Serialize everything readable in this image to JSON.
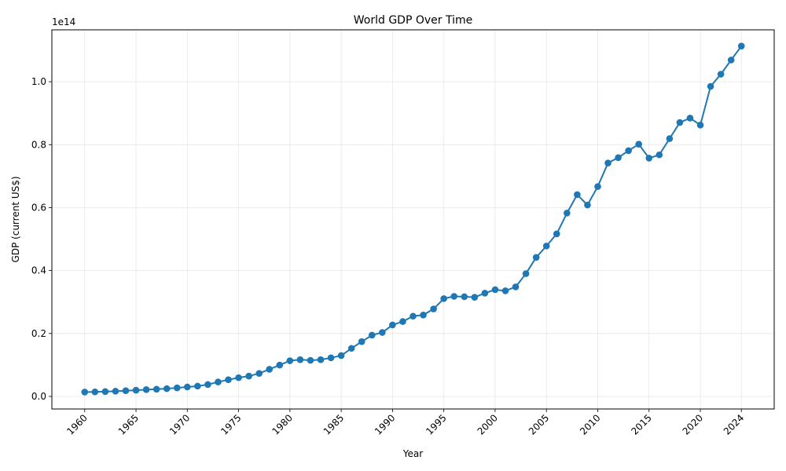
{
  "chart_data": {
    "type": "line",
    "title": "World GDP Over Time",
    "xlabel": "Year",
    "ylabel": "GDP (current US$)",
    "y_offset_label": "1e14",
    "line_color": "#1f77b4",
    "grid": true,
    "xlim": [
      1956.8,
      2027.2
    ],
    "ylim": [
      -0.04,
      1.165
    ],
    "y_scale_note": "y values shown in units of 1e14 current US$",
    "x_ticks": [
      1960,
      1965,
      1970,
      1975,
      1980,
      1985,
      1990,
      1995,
      2000,
      2005,
      2010,
      2015,
      2020,
      2024
    ],
    "y_ticks": [
      0.0,
      0.2,
      0.4,
      0.6,
      0.8,
      1.0
    ],
    "y_tick_labels": [
      "0.0",
      "0.2",
      "0.4",
      "0.6",
      "0.8",
      "1.0"
    ],
    "x": [
      1960,
      1961,
      1962,
      1963,
      1964,
      1965,
      1966,
      1967,
      1968,
      1969,
      1970,
      1971,
      1972,
      1973,
      1974,
      1975,
      1976,
      1977,
      1978,
      1979,
      1980,
      1981,
      1982,
      1983,
      1984,
      1985,
      1986,
      1987,
      1988,
      1989,
      1990,
      1991,
      1992,
      1993,
      1994,
      1995,
      1996,
      1997,
      1998,
      1999,
      2000,
      2001,
      2002,
      2003,
      2004,
      2005,
      2006,
      2007,
      2008,
      2009,
      2010,
      2011,
      2012,
      2013,
      2014,
      2015,
      2016,
      2017,
      2018,
      2019,
      2020,
      2021,
      2022,
      2023,
      2024
    ],
    "y": [
      0.0137,
      0.0143,
      0.0153,
      0.0165,
      0.0181,
      0.0197,
      0.0215,
      0.0229,
      0.0246,
      0.0272,
      0.0299,
      0.0327,
      0.0377,
      0.0459,
      0.053,
      0.0595,
      0.0646,
      0.0731,
      0.0861,
      0.0995,
      0.1134,
      0.1168,
      0.1147,
      0.1167,
      0.1226,
      0.1298,
      0.1527,
      0.1741,
      0.1946,
      0.2032,
      0.2272,
      0.2379,
      0.255,
      0.2587,
      0.278,
      0.3108,
      0.318,
      0.3168,
      0.3151,
      0.3282,
      0.3392,
      0.3356,
      0.348,
      0.3902,
      0.4416,
      0.478,
      0.5166,
      0.5825,
      0.6412,
      0.6083,
      0.667,
      0.7417,
      0.7588,
      0.781,
      0.8016,
      0.7573,
      0.7677,
      0.8192,
      0.8705,
      0.8845,
      0.8624,
      0.9853,
      1.024,
      1.069,
      1.1134
    ]
  }
}
